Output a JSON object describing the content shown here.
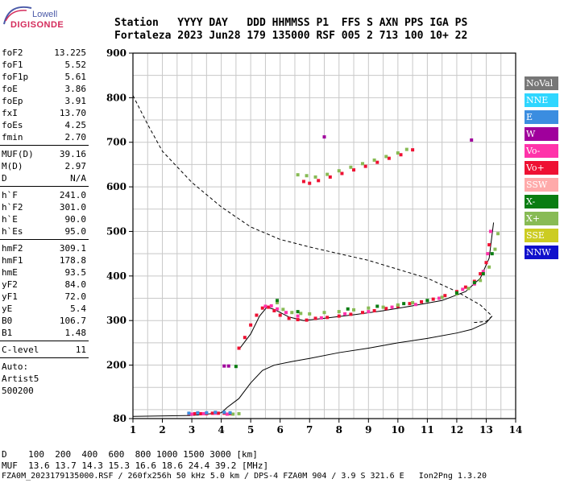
{
  "logo": {
    "top": "Lowell",
    "main": "DIGISONDE"
  },
  "header": {
    "line1": "Station   YYYY DAY   DDD HHMMSS P1  FFS S AXN PPS IGA PS",
    "line2": "Fortaleza 2023 Jun28 179 135000 RSF 005 2 713 100 10+ 22"
  },
  "params_group1": [
    {
      "label": "foF2",
      "value": "13.225"
    },
    {
      "label": "foF1",
      "value": "5.52"
    },
    {
      "label": "foF1p",
      "value": "5.61"
    },
    {
      "label": "foE",
      "value": "3.86"
    },
    {
      "label": "foEp",
      "value": "3.91"
    },
    {
      "label": "fxI",
      "value": "13.70"
    },
    {
      "label": "foEs",
      "value": "4.25"
    },
    {
      "label": "fmin",
      "value": "2.70"
    }
  ],
  "params_group2": [
    {
      "label": "MUF(D)",
      "value": "39.16"
    },
    {
      "label": "M(D)",
      "value": "2.97"
    },
    {
      "label": "D",
      "value": "N/A"
    }
  ],
  "params_group3": [
    {
      "label": "h`F",
      "value": "241.0"
    },
    {
      "label": "h`F2",
      "value": "301.0"
    },
    {
      "label": "h`E",
      "value": "90.0"
    },
    {
      "label": "h`Es",
      "value": "95.0"
    }
  ],
  "params_group4": [
    {
      "label": "hmF2",
      "value": "309.1"
    },
    {
      "label": "hmF1",
      "value": "178.8"
    },
    {
      "label": "hmE",
      "value": "93.5"
    },
    {
      "label": "yF2",
      "value": "84.0"
    },
    {
      "label": "yF1",
      "value": "72.0"
    },
    {
      "label": "yE",
      "value": "5.4"
    },
    {
      "label": "B0",
      "value": "106.7"
    },
    {
      "label": "B1",
      "value": "1.48"
    }
  ],
  "params_group5": [
    {
      "label": "C-level",
      "value": "11"
    }
  ],
  "autoscale": {
    "line1": "Auto:",
    "line2": "Artist5",
    "line3": "500200"
  },
  "legend": [
    {
      "label": "NoVal",
      "color": "#777777"
    },
    {
      "label": "NNE",
      "color": "#2fd6ff"
    },
    {
      "label": "E",
      "color": "#3b8de0"
    },
    {
      "label": "W",
      "color": "#a0009c"
    },
    {
      "label": "Vo-",
      "color": "#ff33aa"
    },
    {
      "label": "Vo+",
      "color": "#ee1133"
    },
    {
      "label": "SSW",
      "color": "#ffaaaa"
    },
    {
      "label": "X-",
      "color": "#0a7d12"
    },
    {
      "label": "X+",
      "color": "#88bb55"
    },
    {
      "label": "SSE",
      "color": "#cccc22"
    },
    {
      "label": "NNW",
      "color": "#1010cc"
    }
  ],
  "bottom": {
    "dist_row": "D    100  200  400  600  800 1000 1500 3000 [km]",
    "muf_row": "MUF  13.6 13.7 14.3 15.3 16.6 18.6 24.4 39.2 [MHz]",
    "footer": "FZA0M_2023179135000.RSF / 260fx256h 50 kHz 5.0 km / DPS-4 FZA0M 904 / 3.9 S 321.6 E   Ion2Png 1.3.20"
  },
  "chart_data": {
    "type": "scatter",
    "xlim": [
      1,
      14
    ],
    "ylim": [
      80,
      900
    ],
    "x_ticks": [
      1,
      2,
      3,
      4,
      5,
      6,
      7,
      8,
      9,
      10,
      11,
      12,
      13,
      14
    ],
    "y_ticks": [
      80,
      200,
      300,
      400,
      500,
      600,
      700,
      800,
      900
    ],
    "grid": true,
    "series": [
      {
        "color": "#000000",
        "style": "solid",
        "x": [
          1.0,
          3.0,
          4.0,
          4.2,
          4.6,
          5.0,
          5.4,
          5.8,
          6.4,
          7.0,
          8.0,
          9.0,
          10.0,
          11.0,
          12.0,
          12.5,
          13.0,
          13.2
        ],
        "y": [
          85,
          87,
          93,
          105,
          125,
          160,
          188,
          200,
          208,
          215,
          228,
          238,
          250,
          260,
          272,
          280,
          295,
          310
        ]
      },
      {
        "color": "#000000",
        "style": "dashed",
        "x": [
          1.0,
          1.5,
          2.0,
          3.0,
          4.0,
          5.0,
          6.0,
          7.0,
          8.0,
          9.0,
          10.0,
          11.0,
          12.0,
          12.8,
          13.2,
          13.0,
          12.5
        ],
        "y": [
          805,
          740,
          680,
          610,
          555,
          510,
          482,
          465,
          450,
          435,
          415,
          395,
          365,
          335,
          310,
          298,
          295
        ]
      },
      {
        "color": "#000000",
        "style": "solid",
        "x": [
          4.6,
          5.0,
          5.3,
          5.55,
          5.8,
          6.3,
          6.8,
          7.5,
          8.5,
          9.5,
          10.5,
          11.5,
          12.3,
          12.8,
          13.1,
          13.25
        ],
        "y": [
          235,
          270,
          310,
          330,
          325,
          308,
          300,
          305,
          313,
          322,
          333,
          345,
          365,
          395,
          440,
          520
        ]
      },
      {
        "color": "#ee1133",
        "style": "points",
        "x": [
          2.9,
          3.1,
          3.3,
          3.5,
          3.7,
          3.9,
          4.1,
          4.3,
          4.6,
          4.8,
          5.0,
          5.2,
          5.4,
          5.6,
          5.8,
          6.0,
          6.3,
          6.6,
          6.9,
          7.2,
          7.6,
          8.0,
          8.4,
          8.8,
          9.2,
          9.6,
          10.0,
          10.4,
          10.8,
          11.2,
          11.6,
          12.0,
          12.3,
          12.6,
          12.8,
          13.0,
          13.1
        ],
        "y": [
          91,
          91,
          91,
          91,
          92,
          92,
          92,
          91,
          238,
          262,
          290,
          312,
          328,
          330,
          322,
          312,
          305,
          302,
          301,
          305,
          307,
          310,
          314,
          318,
          322,
          327,
          332,
          338,
          342,
          348,
          356,
          365,
          375,
          388,
          405,
          430,
          470
        ]
      },
      {
        "color": "#ff33aa",
        "style": "points",
        "x": [
          3.0,
          3.4,
          3.8,
          4.2,
          5.5,
          5.7,
          5.9,
          6.2,
          6.6,
          7.4,
          8.2,
          9.0,
          9.8,
          10.6,
          11.4,
          12.2,
          12.6,
          12.9,
          13.05,
          13.15
        ],
        "y": [
          90,
          91,
          92,
          90,
          332,
          333,
          326,
          318,
          310,
          306,
          315,
          320,
          330,
          336,
          350,
          370,
          382,
          410,
          450,
          500
        ]
      },
      {
        "color": "#88bb55",
        "style": "points",
        "x": [
          4.4,
          4.6,
          5.9,
          6.1,
          6.4,
          6.7,
          7.0,
          7.5,
          8.0,
          8.5,
          9.0,
          9.5,
          10.0,
          10.5,
          11.0,
          11.5,
          12.0,
          12.4,
          12.8,
          13.1,
          13.3,
          13.4
        ],
        "y": [
          90,
          91,
          340,
          325,
          318,
          316,
          315,
          318,
          320,
          324,
          328,
          330,
          335,
          340,
          345,
          352,
          360,
          372,
          390,
          420,
          460,
          495
        ]
      },
      {
        "color": "#0a7d12",
        "style": "points",
        "x": [
          4.5,
          5.9,
          6.6,
          8.3,
          9.3,
          10.2,
          11.0,
          12.0,
          12.6,
          12.9,
          13.2
        ],
        "y": [
          197,
          345,
          320,
          326,
          332,
          338,
          345,
          362,
          385,
          405,
          450
        ]
      },
      {
        "color": "#3b8de0",
        "style": "points",
        "x": [
          2.9,
          3.2,
          3.5,
          3.8,
          4.1,
          4.3
        ],
        "y": [
          92,
          93,
          93,
          94,
          94,
          93
        ]
      },
      {
        "color": "#ee1133",
        "style": "points",
        "x": [
          6.8,
          7.0,
          7.3,
          7.7,
          8.1,
          8.5,
          8.9,
          9.3,
          9.7,
          10.1,
          10.5
        ],
        "y": [
          612,
          608,
          614,
          622,
          630,
          638,
          646,
          655,
          664,
          672,
          683
        ]
      },
      {
        "color": "#88bb55",
        "style": "points",
        "x": [
          6.6,
          6.9,
          7.2,
          7.6,
          8.0,
          8.4,
          8.8,
          9.2,
          9.6,
          10.0,
          10.3
        ],
        "y": [
          627,
          625,
          622,
          628,
          636,
          644,
          652,
          660,
          668,
          676,
          684
        ]
      },
      {
        "color": "#a0009c",
        "style": "points",
        "x": [
          7.5,
          12.5,
          4.1,
          4.25
        ],
        "y": [
          712,
          705,
          198,
          198
        ]
      }
    ]
  }
}
